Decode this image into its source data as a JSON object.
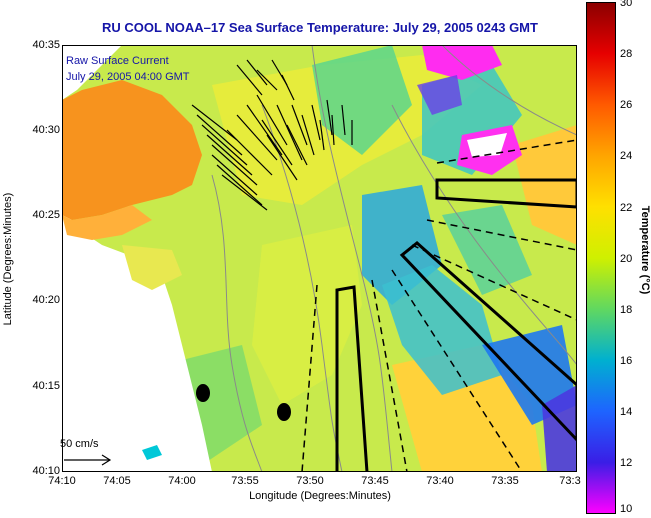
{
  "title": "RU COOL  NOAA–17  Sea Surface Temperature:  July 29, 2005 0243 GMT",
  "current_legend": {
    "line1": "Raw Surface Current",
    "line2": "July 29, 2005 04:00 GMT"
  },
  "axes": {
    "xlabel": "Longitude (Degrees:Minutes)",
    "ylabel": "Latitude (Degrees:Minutes)",
    "x_ticks": [
      "74:10",
      "74:05",
      "74:00",
      "73:55",
      "73:50",
      "73:45",
      "73:40",
      "73:35",
      "73:3"
    ],
    "y_ticks": [
      "40:35",
      "40:30",
      "40:25",
      "40:20",
      "40:15",
      "40:10"
    ]
  },
  "colorbar": {
    "label": "Temperature (°C)",
    "ticks": [
      "30",
      "28",
      "26",
      "24",
      "22",
      "20",
      "18",
      "16",
      "14",
      "12",
      "10"
    ],
    "colors": [
      "#8b0000",
      "#e60000",
      "#ff5a00",
      "#ffa500",
      "#ffe000",
      "#cff000",
      "#60d860",
      "#00b0d0",
      "#1e64ff",
      "#3a1ee6",
      "#ff00ff"
    ]
  },
  "scale": {
    "label": "50 cm/s"
  }
}
